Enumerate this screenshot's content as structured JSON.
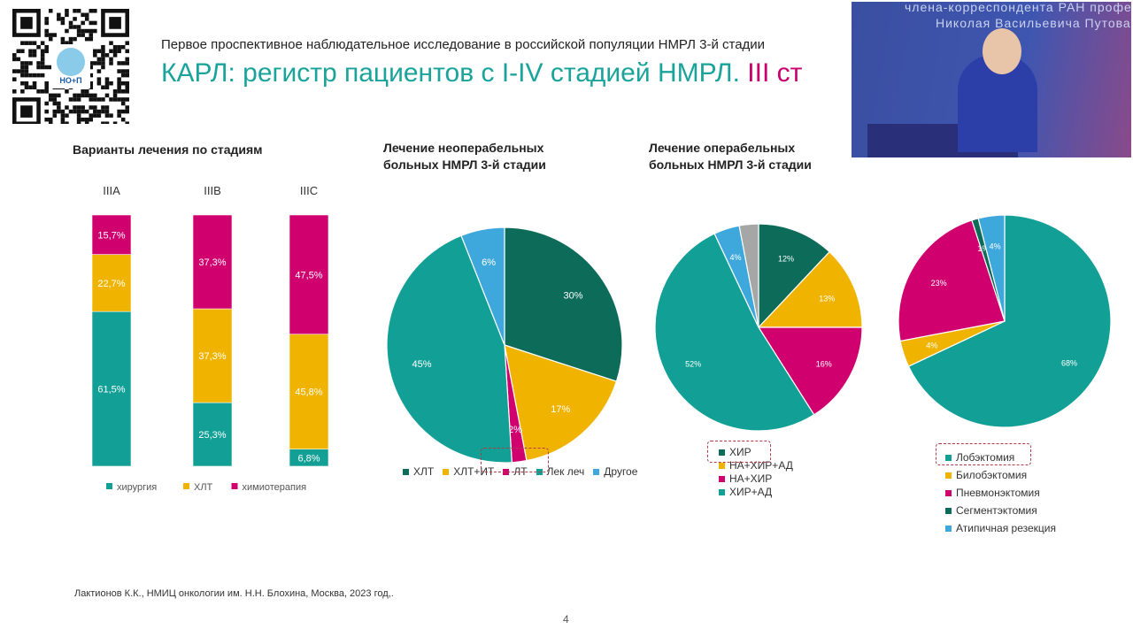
{
  "header": {
    "subtitle": "Первое проспективное наблюдательное исследование в российской популяции НМРЛ 3-й стадии",
    "title_main": "КАРЛ: регистр пациентов с I-IV стадией НМРЛ. ",
    "title_highlight": "III ст"
  },
  "video": {
    "line1": "члена-корреспондента РАН профе",
    "line2": "Николая Васильевича Путова"
  },
  "footer": {
    "citation": "Лактионов К.К., НМИЦ онкологии им. Н.Н. Блохина, Москва, 2023 год,.",
    "page": "4"
  },
  "colors": {
    "dark_green": "#0d6b5a",
    "yellow": "#f0b400",
    "magenta": "#d0006f",
    "teal": "#12a096",
    "light_blue": "#3ea8dc",
    "gray": "#a6a6a6",
    "title": "#1aa39a",
    "highlight": "#c8006e"
  },
  "chart_data": [
    {
      "type": "bar",
      "stacked": true,
      "title": "Варианты лечения по стадиям",
      "categories": [
        "IIIA",
        "IIIB",
        "IIIC"
      ],
      "series": [
        {
          "name": "хирургия",
          "color": "#12a096",
          "values": [
            61.5,
            25.3,
            6.8
          ],
          "labels": [
            "61,5%",
            "25,3%",
            "6,8%"
          ]
        },
        {
          "name": "ХЛТ",
          "color": "#f0b400",
          "values": [
            22.7,
            37.3,
            45.8
          ],
          "labels": [
            "22,7%",
            "37,3%",
            "45,8%"
          ]
        },
        {
          "name": "химиотерапия",
          "color": "#d0006f",
          "values": [
            15.7,
            37.3,
            47.5
          ],
          "labels": [
            "15,7%",
            "37,3%",
            "47,5%"
          ]
        }
      ],
      "legend": "bottom"
    },
    {
      "type": "pie",
      "title": "Лечение неоперабельных больных НМРЛ 3-й стадии",
      "slices": [
        {
          "name": "ХЛТ",
          "value": 30,
          "label": "30%",
          "color": "#0d6b5a"
        },
        {
          "name": "ХЛТ+ИТ",
          "value": 17,
          "label": "17%",
          "color": "#f0b400"
        },
        {
          "name": "ЛТ",
          "value": 2,
          "label": "2%",
          "color": "#d0006f"
        },
        {
          "name": "Лек леч",
          "value": 45,
          "label": "45%",
          "color": "#12a096"
        },
        {
          "name": "Другое",
          "value": 6,
          "label": "6%",
          "color": "#3ea8dc"
        }
      ],
      "legend": "bottom"
    },
    {
      "type": "pie",
      "title": "Лечение операбельных больных НМРЛ 3-й стадии",
      "slices": [
        {
          "name": "ХИР",
          "value": 12,
          "label": "12%",
          "color": "#0d6b5a"
        },
        {
          "name": "НА+ХИР+АД",
          "value": 13,
          "label": "13%",
          "color": "#f0b400"
        },
        {
          "name": "НА+ХИР",
          "value": 16,
          "label": "16%",
          "color": "#d0006f"
        },
        {
          "name": "ХИР+АД",
          "value": 52,
          "label": "52%",
          "color": "#12a096"
        },
        {
          "value": 4,
          "label": "4%",
          "color": "#3ea8dc"
        },
        {
          "value": 3,
          "label": "",
          "color": "#a6a6a6"
        }
      ],
      "legend": "bottom"
    },
    {
      "type": "pie",
      "slices": [
        {
          "name": "Лобэктомия",
          "value": 68,
          "label": "68%",
          "color": "#12a096"
        },
        {
          "name": "Билобэктомия",
          "value": 4,
          "label": "4%",
          "color": "#f0b400"
        },
        {
          "name": "Пневмонэктомия",
          "value": 23,
          "label": "23%",
          "color": "#d0006f"
        },
        {
          "name": "Сегментэктомия",
          "value": 1,
          "label": "1%",
          "color": "#0d6b5a"
        },
        {
          "name": "Атипичная резекция",
          "value": 4,
          "label": "4%",
          "color": "#3ea8dc"
        }
      ],
      "legend": "bottom"
    }
  ]
}
